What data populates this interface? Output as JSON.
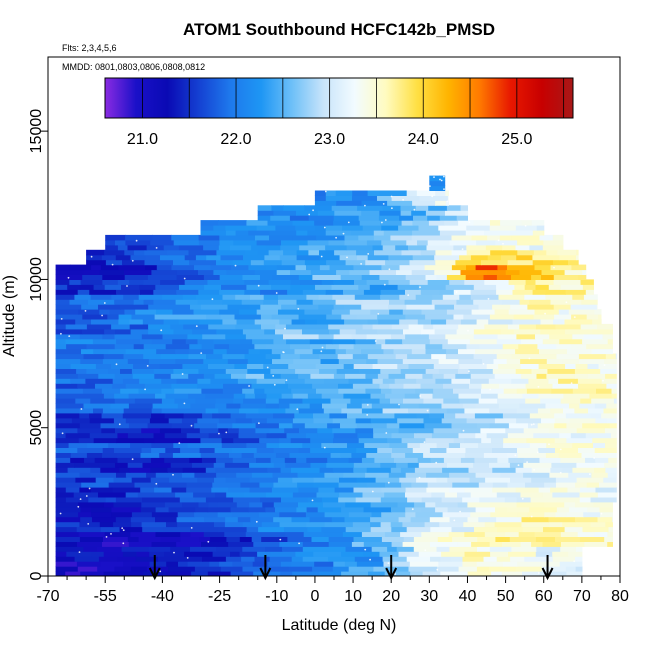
{
  "chart_data": {
    "type": "heatmap",
    "title": "ATOM1 Southbound HCFC142b_PMSD",
    "flights_text": "Flts: 2,3,4,5,6",
    "mmdd_text": "MMDD: 0801,0803,0806,0808,0812",
    "xlabel": "Latitude (deg N)",
    "ylabel": "Altitude (m)",
    "xlim": [
      -70,
      80
    ],
    "ylim": [
      0,
      17500
    ],
    "x_ticks": [
      -70,
      -55,
      -40,
      -25,
      -10,
      0,
      10,
      20,
      30,
      40,
      50,
      60,
      70,
      80
    ],
    "x_minor_ticks": [
      -65,
      -60,
      -50,
      -45,
      -35,
      -30,
      -20,
      -15,
      -5,
      5,
      15,
      25,
      35,
      45,
      55,
      65,
      75
    ],
    "y_ticks": [
      0,
      5000,
      10000,
      15000
    ],
    "colorbar": {
      "range": [
        20.6,
        25.6
      ],
      "tick_values": [
        21.0,
        22.0,
        23.0,
        24.0,
        25.0
      ],
      "tick_labels": [
        "21.0",
        "22.0",
        "23.0",
        "24.0",
        "25.0"
      ],
      "stops": [
        "#8a2be2",
        "#1a10c8",
        "#0a0ab4",
        "#1440d2",
        "#1e78ec",
        "#1e96f4",
        "#6ec0f8",
        "#c8e4fa",
        "#f2fbff",
        "#fffbc0",
        "#ffe044",
        "#ffb400",
        "#ff7a00",
        "#e81800",
        "#c80000",
        "#a81818"
      ]
    },
    "profile_markers_lat": [
      -42,
      -13,
      20,
      61
    ],
    "altitude_bins_m": [
      0,
      500,
      1000,
      1500,
      2000,
      2500,
      3000,
      3500,
      4000,
      4500,
      5000,
      5500,
      6000,
      6500,
      7000,
      7500,
      8000,
      8500,
      9000,
      9500,
      10000,
      10500,
      11000,
      11500,
      12000,
      12500,
      13000
    ],
    "lat_extent_by_bin": [
      [
        -68,
        70
      ],
      [
        -68,
        70
      ],
      [
        -68,
        78
      ],
      [
        -68,
        78
      ],
      [
        -68,
        78
      ],
      [
        -68,
        79
      ],
      [
        -68,
        79
      ],
      [
        -68,
        79
      ],
      [
        -68,
        79
      ],
      [
        -68,
        79
      ],
      [
        -68,
        79
      ],
      [
        -68,
        79
      ],
      [
        -68,
        79
      ],
      [
        -68,
        79
      ],
      [
        -68,
        79
      ],
      [
        -68,
        78
      ],
      [
        -68,
        78
      ],
      [
        -68,
        75
      ],
      [
        -68,
        74
      ],
      [
        -68,
        73
      ],
      [
        -68,
        71
      ],
      [
        -60,
        69
      ],
      [
        -55,
        65
      ],
      [
        -30,
        60
      ],
      [
        -15,
        40
      ],
      [
        0,
        35
      ],
      [
        30,
        34
      ]
    ],
    "mixing_ratio_segments": [
      {
        "lat": -60,
        "values": [
          21.0,
          21.2,
          21.2,
          21.4,
          21.2,
          21.4,
          21.6,
          21.5,
          21.7,
          21.4,
          21.6,
          21.8,
          21.8,
          21.9,
          22.0,
          22.0,
          21.8,
          21.7,
          21.8,
          21.5,
          21.3,
          21.2,
          21.5
        ]
      },
      {
        "lat": -45,
        "values": [
          21.2,
          21.3,
          21.0,
          21.5,
          21.3,
          21.6,
          21.7,
          21.3,
          21.8,
          21.2,
          21.5,
          21.9,
          22.1,
          22.0,
          22.1,
          22.0,
          21.9,
          22.2,
          21.9,
          21.6,
          21.4,
          21.7,
          21.6,
          21.9
        ]
      },
      {
        "lat": -30,
        "values": [
          21.4,
          21.5,
          21.2,
          21.7,
          21.6,
          21.8,
          21.9,
          21.5,
          21.9,
          21.5,
          21.7,
          22.0,
          22.1,
          22.2,
          22.2,
          22.1,
          22.3,
          22.3,
          22.2,
          22.0,
          21.9,
          22.0,
          22.0,
          22.1
        ]
      },
      {
        "lat": -15,
        "values": [
          21.8,
          21.8,
          21.6,
          22.0,
          21.9,
          22.0,
          22.1,
          21.9,
          22.0,
          21.9,
          22.0,
          22.1,
          22.2,
          22.5,
          22.3,
          22.3,
          22.6,
          22.4,
          22.4,
          22.1,
          22.2,
          22.2,
          22.1,
          22.2,
          22.1
        ]
      },
      {
        "lat": 0,
        "values": [
          22.0,
          22.1,
          22.0,
          22.2,
          22.1,
          22.1,
          22.2,
          22.0,
          22.1,
          22.0,
          22.2,
          22.3,
          22.3,
          22.6,
          22.4,
          22.4,
          22.7,
          22.5,
          22.6,
          22.3,
          22.5,
          22.4,
          22.3,
          22.2,
          22.1
        ]
      },
      {
        "lat": 15,
        "values": [
          22.4,
          22.3,
          22.6,
          22.5,
          22.4,
          22.6,
          22.4,
          22.3,
          22.5,
          22.3,
          22.4,
          22.6,
          22.5,
          22.6,
          22.8,
          22.6,
          22.9,
          22.6,
          22.7,
          22.4,
          22.6,
          22.6,
          22.5,
          22.4,
          22.3,
          22.2
        ]
      },
      {
        "lat": 30,
        "values": [
          23.1,
          23.2,
          23.3,
          23.1,
          23.0,
          23.1,
          22.9,
          22.8,
          22.9,
          22.7,
          22.6,
          22.8,
          22.9,
          22.9,
          23.0,
          22.9,
          23.0,
          22.8,
          22.9,
          22.7,
          23.1,
          23.0,
          22.9,
          22.8,
          22.5,
          23.2,
          22.2
        ]
      },
      {
        "lat": 45,
        "values": [
          23.4,
          23.5,
          23.7,
          23.3,
          23.2,
          23.2,
          22.9,
          22.9,
          23.0,
          23.0,
          22.8,
          23.0,
          23.1,
          23.0,
          23.3,
          23.2,
          23.4,
          23.2,
          23.0,
          23.2,
          24.6,
          24.0,
          23.4,
          23.3
        ]
      },
      {
        "lat": 60,
        "values": [
          23.3,
          23.2,
          23.6,
          23.8,
          23.5,
          23.3,
          23.1,
          23.1,
          23.2,
          23.4,
          23.4,
          23.3,
          23.5,
          23.6,
          23.6,
          23.5,
          23.6,
          23.4,
          23.6,
          23.7,
          24.0,
          23.8,
          23.3
        ]
      },
      {
        "lat": 72,
        "values": [
          23.2,
          23.3,
          23.5,
          23.5,
          23.4,
          23.2,
          23.3,
          23.3,
          23.4,
          23.3,
          23.4,
          23.4,
          23.5,
          23.5,
          23.4,
          23.4,
          23.5,
          23.4,
          23.4,
          23.6,
          23.5
        ]
      }
    ]
  }
}
